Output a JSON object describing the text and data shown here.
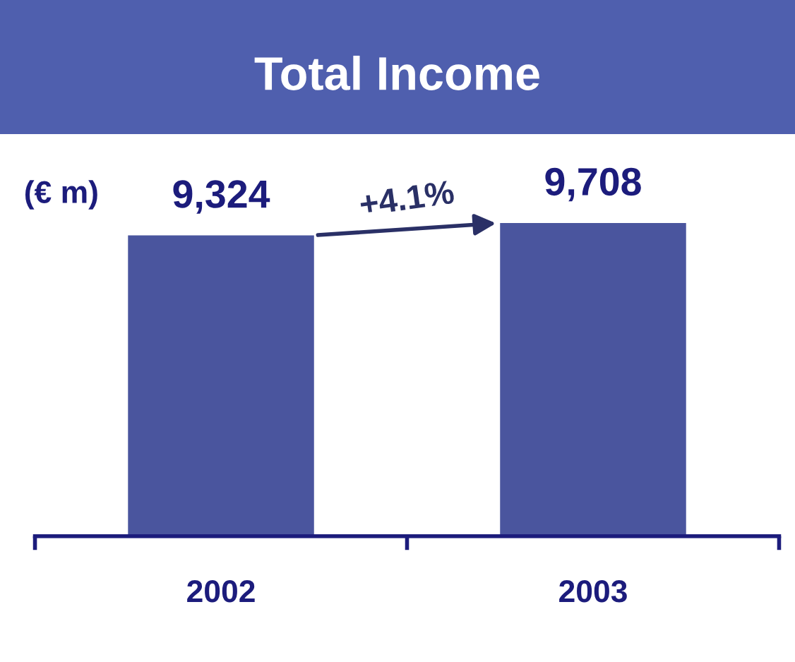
{
  "chart_data": {
    "type": "bar",
    "title": "Total Income",
    "ylabel": "(€ m)",
    "categories": [
      "2002",
      "2003"
    ],
    "values": [
      9324,
      9708
    ],
    "color": "#4a559e",
    "value_labels": [
      "9,324",
      "9,708"
    ],
    "annotations": [
      "+4.1%"
    ]
  }
}
